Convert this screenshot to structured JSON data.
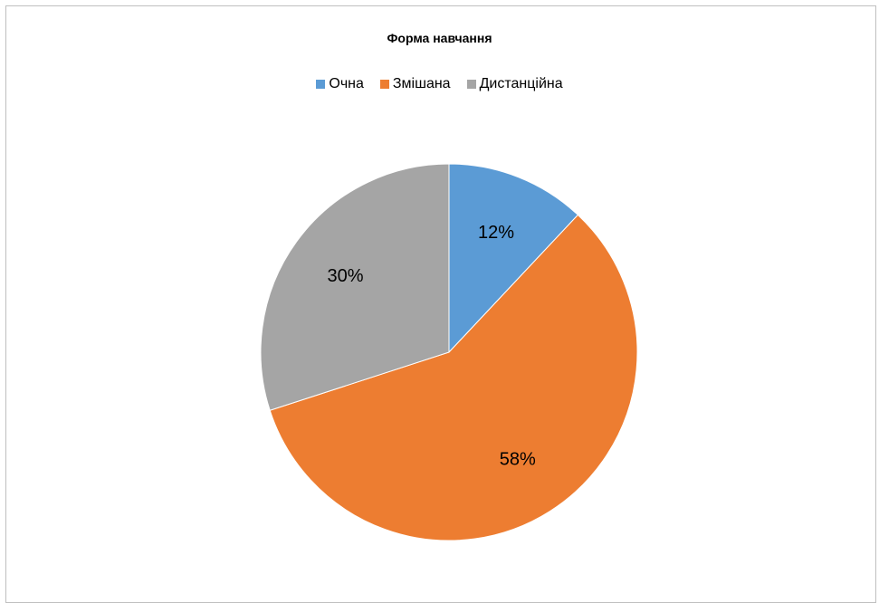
{
  "chart_data": {
    "type": "pie",
    "title": "Форма навчання",
    "categories": [
      "Очна",
      "Змішана",
      "Дистанційна"
    ],
    "values": [
      12,
      58,
      30
    ],
    "labels": [
      "12%",
      "58%",
      "30%"
    ],
    "colors": [
      "#5b9bd5",
      "#ed7d31",
      "#a5a5a5"
    ],
    "legend_position": "top"
  }
}
